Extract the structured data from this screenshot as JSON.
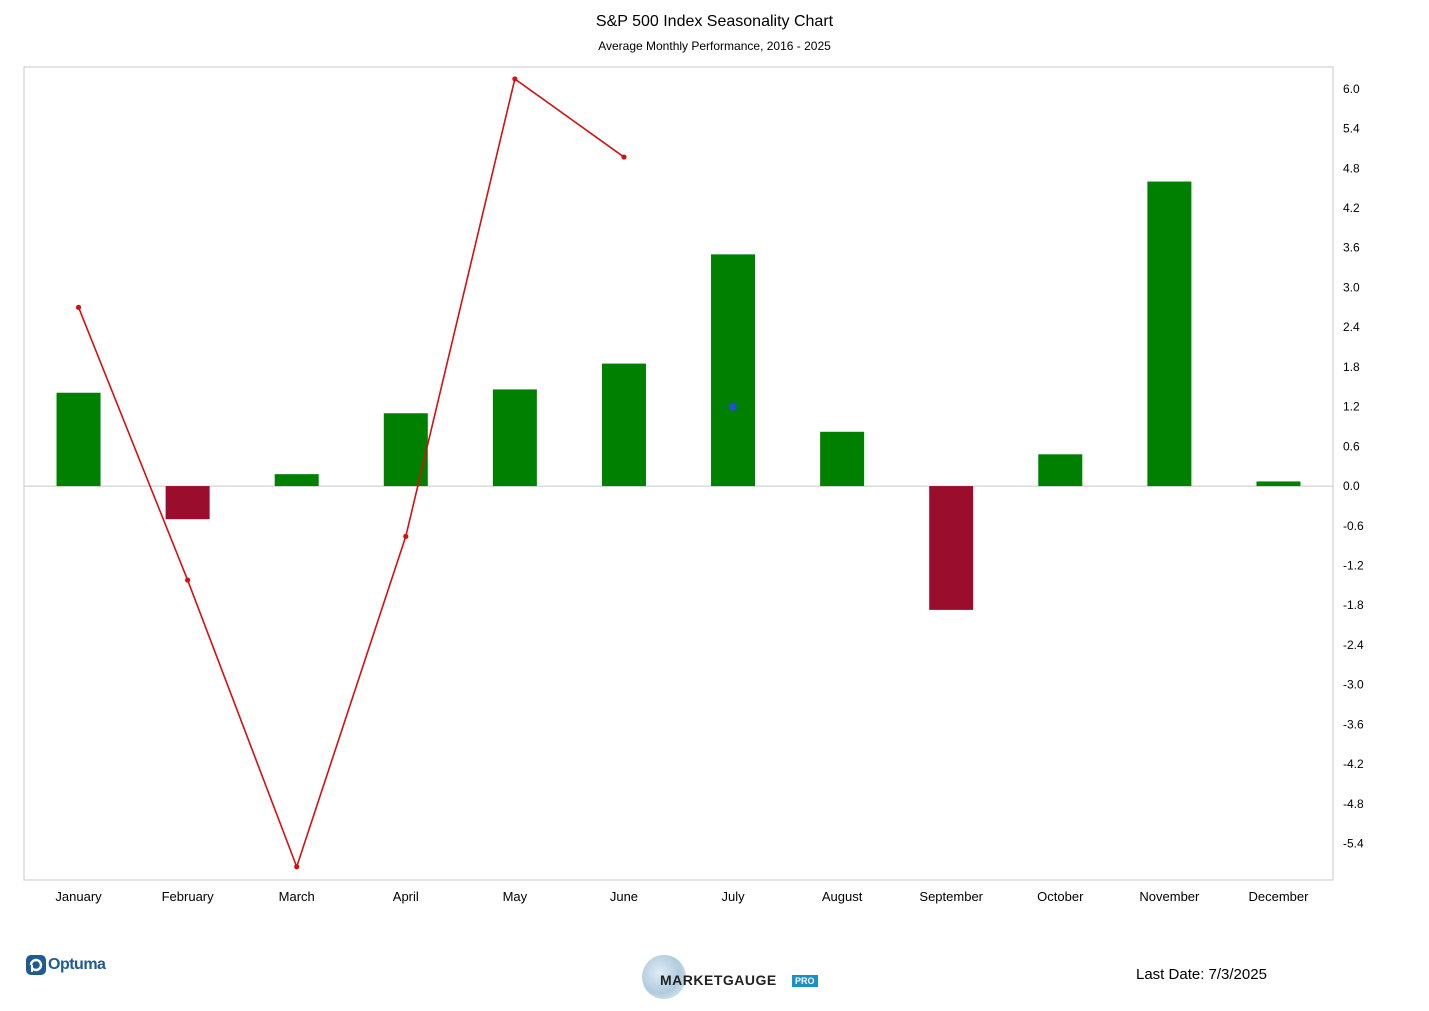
{
  "header": {
    "title": "S&P 500 Index Seasonality Chart",
    "subtitle": "Average Monthly Performance, 2016 - 2025"
  },
  "chart_data": {
    "type": "bar",
    "title": "S&P 500 Index Seasonality Chart",
    "subtitle": "Average Monthly Performance, 2016 - 2025",
    "categories": [
      "January",
      "February",
      "March",
      "April",
      "May",
      "June",
      "July",
      "August",
      "September",
      "October",
      "November",
      "December"
    ],
    "series": [
      {
        "type": "bar",
        "values": [
          1.41,
          -0.5,
          0.18,
          1.1,
          1.46,
          1.85,
          3.5,
          0.82,
          -1.87,
          0.48,
          4.6,
          0.07
        ],
        "positive_color": "#008000",
        "negative_color": "#9b0d2c"
      },
      {
        "type": "line",
        "values": [
          2.7,
          -1.42,
          -5.75,
          -0.76,
          6.15,
          4.97,
          null,
          null,
          null,
          null,
          null,
          null
        ],
        "color": "#d41010"
      },
      {
        "type": "point",
        "category": "July",
        "value": 1.2,
        "color": "#1e4fd6"
      }
    ],
    "y_axis": {
      "position": "right",
      "ylim": [
        -5.95,
        6.33
      ],
      "ticks": [
        "6.0",
        "5.4",
        "4.8",
        "4.2",
        "3.6",
        "3.0",
        "2.4",
        "1.8",
        "1.2",
        "0.6",
        "0.0",
        "-0.6",
        "-1.2",
        "-1.8",
        "-2.4",
        "-3.0",
        "-3.6",
        "-4.2",
        "-4.8",
        "-5.4"
      ],
      "tick_values": [
        6.0,
        5.4,
        4.8,
        4.2,
        3.6,
        3.0,
        2.4,
        1.8,
        1.2,
        0.6,
        0.0,
        -0.6,
        -1.2,
        -1.8,
        -2.4,
        -3.0,
        -3.6,
        -4.2,
        -4.8,
        -5.4
      ]
    },
    "grid": false,
    "legend": "none",
    "zero_line_color": "#c8c8c8"
  },
  "footer": {
    "optuma_logo": "Optuma",
    "marketgauge_logo": "MARKETGAUGE",
    "marketgauge_pro": "PRO",
    "last_date": "Last Date: 7/3/2025"
  }
}
